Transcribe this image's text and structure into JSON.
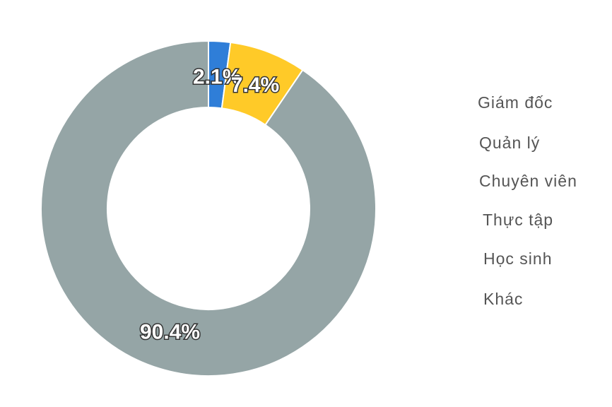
{
  "chart_data": {
    "type": "pie",
    "values": [
      2.1,
      7.4,
      90.4
    ],
    "value_labels": [
      "2.1%",
      "7.4%",
      "90.4%"
    ],
    "colors": [
      "#2f7ed8",
      "#ffca28",
      "#95a5a6"
    ],
    "legend": [
      "Giám đốc",
      "Quản lý",
      "Chuyên viên",
      "Thực tập",
      "Học sinh",
      "Khác"
    ]
  }
}
